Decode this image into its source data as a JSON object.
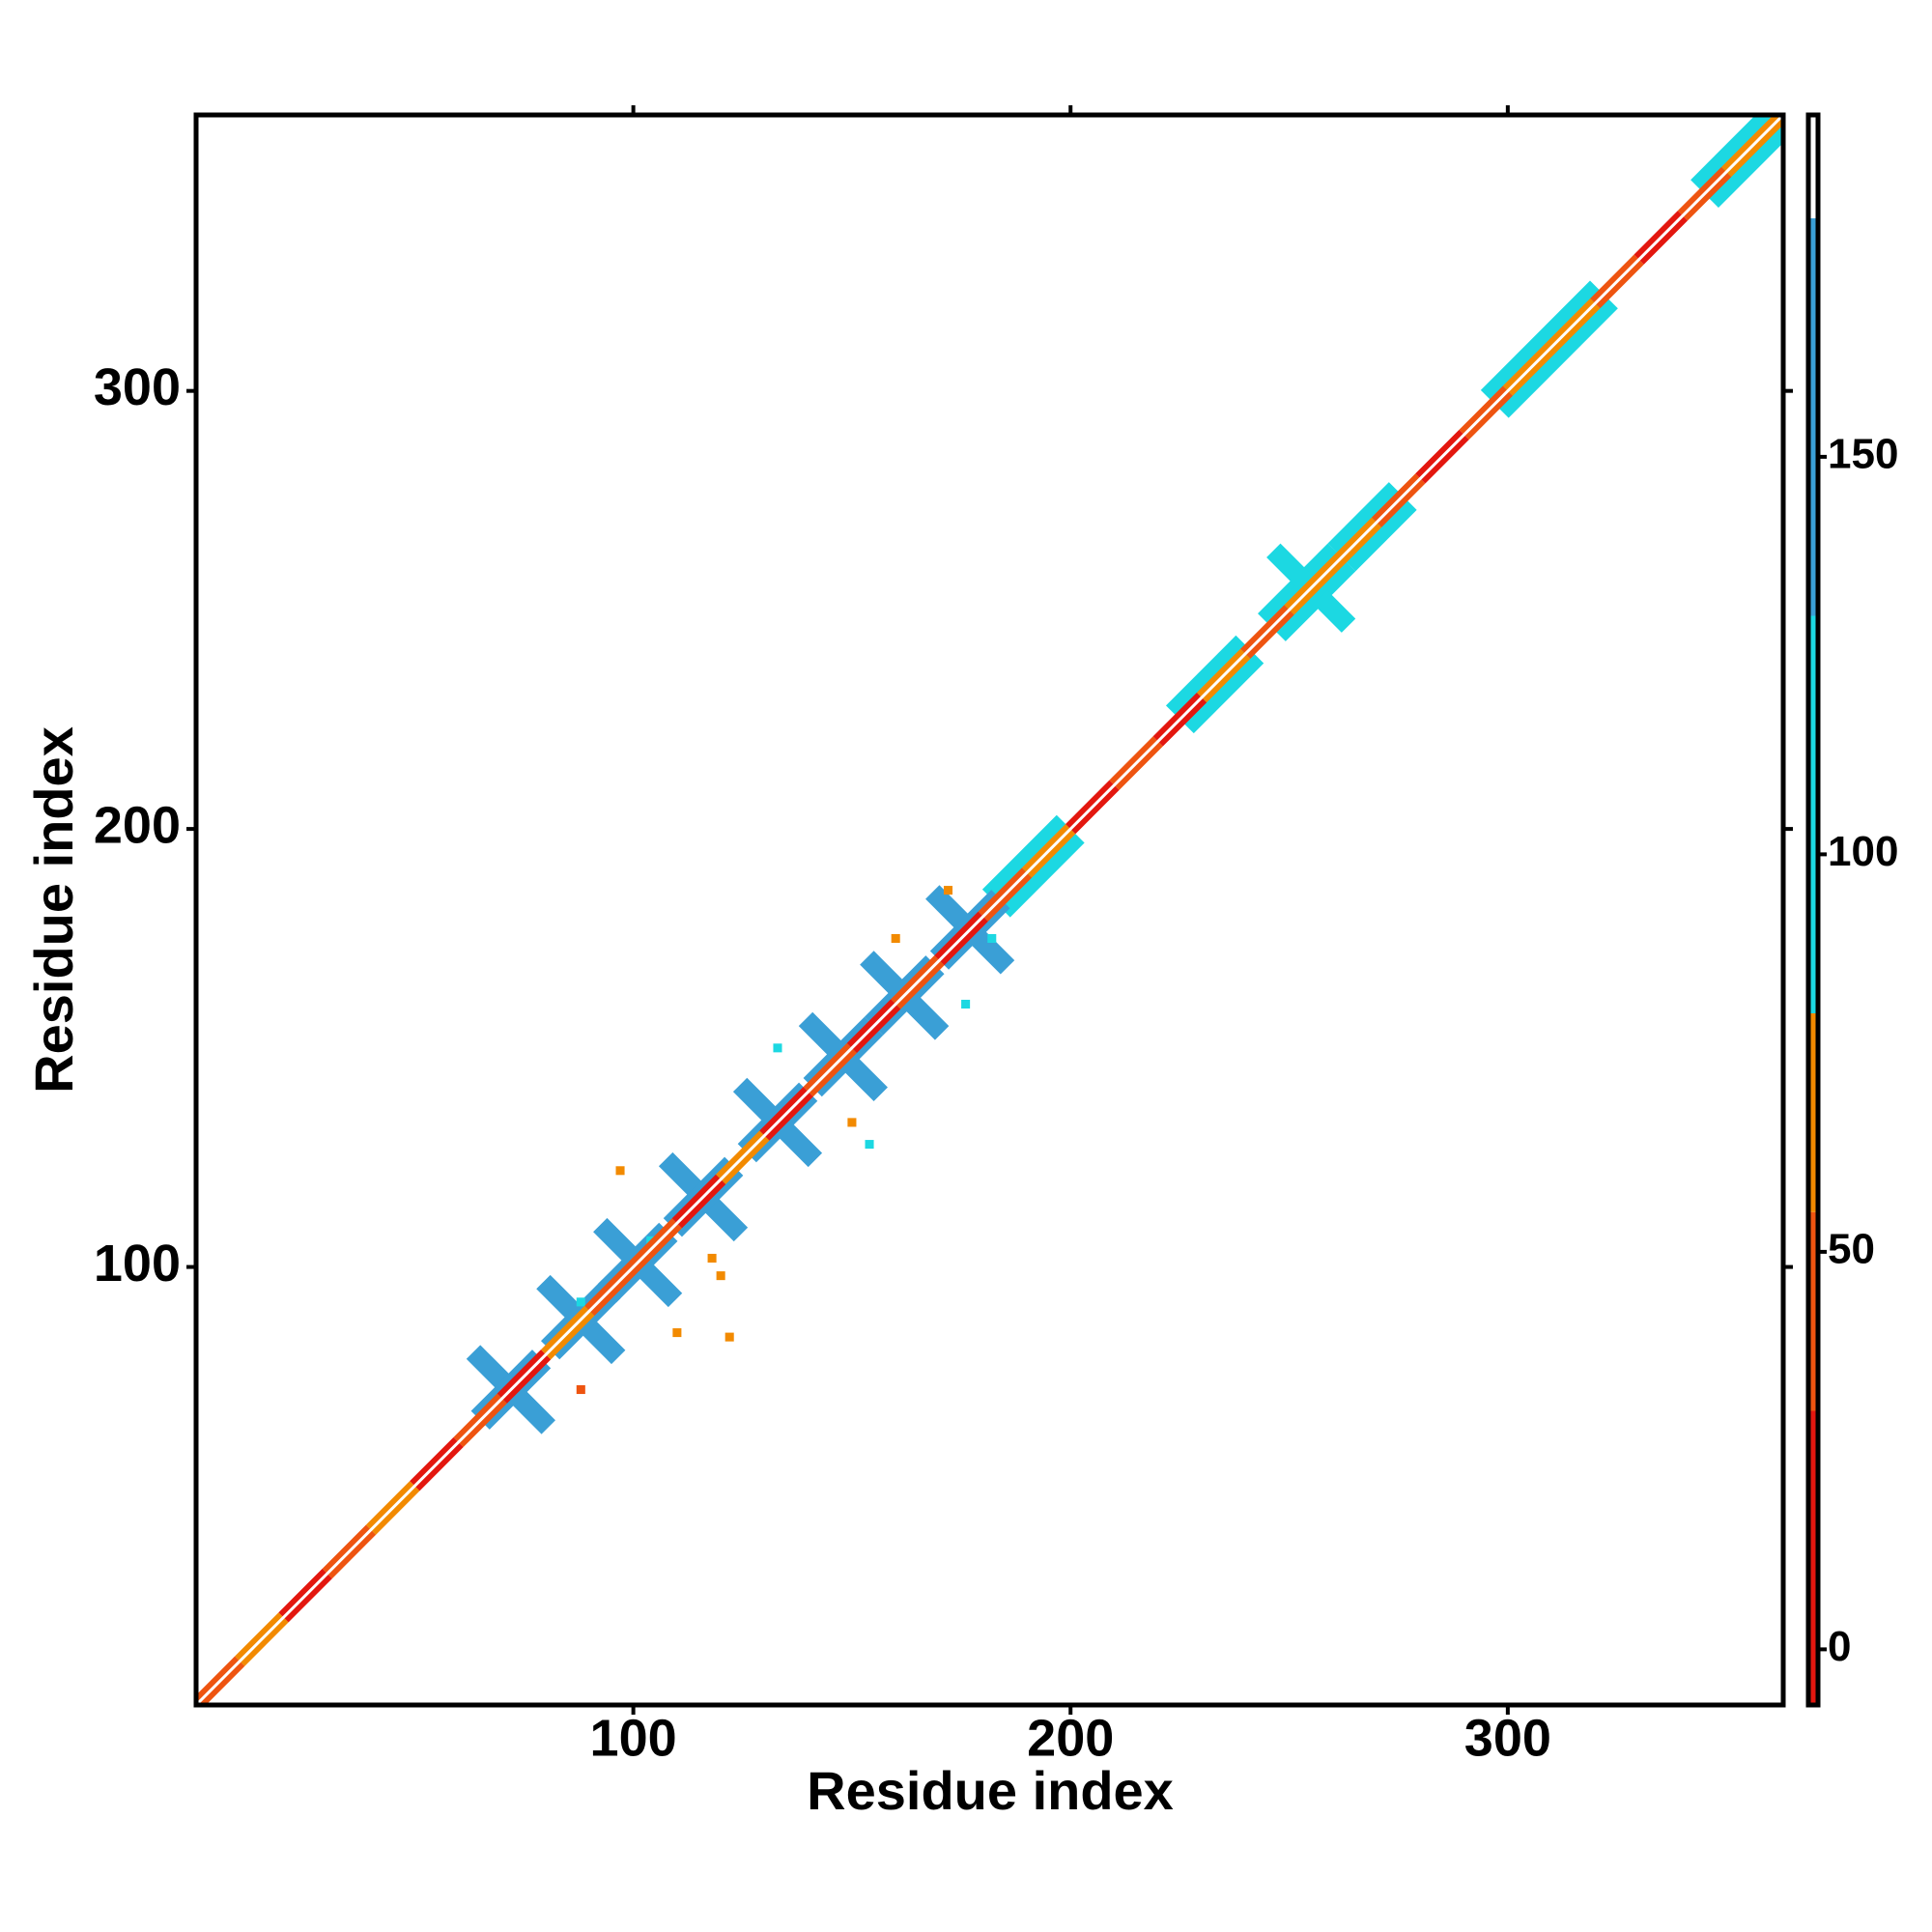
{
  "chart_data": {
    "type": "heatmap",
    "xlabel": "Residue index",
    "ylabel": "Residue index",
    "xlim": [
      0,
      363
    ],
    "ylim": [
      0,
      363
    ],
    "xticks": [
      100,
      200,
      300
    ],
    "yticks": [
      100,
      200,
      300
    ],
    "colorbar": {
      "lim": [
        -7,
        193
      ],
      "ticks": [
        0,
        50,
        100,
        150
      ],
      "bands": [
        {
          "range": [
            -7,
            30
          ],
          "color": "#e3170f"
        },
        {
          "range": [
            30,
            55
          ],
          "color": "#ee5410"
        },
        {
          "range": [
            55,
            80
          ],
          "color": "#f28a00"
        },
        {
          "range": [
            80,
            130
          ],
          "color": "#1cd8e2"
        },
        {
          "range": [
            130,
            180
          ],
          "color": "#3a9fd6"
        },
        {
          "range": [
            180,
            193
          ],
          "color": "#ffffff"
        }
      ]
    },
    "helix_bands": {
      "x": [
        [
          183,
          200
        ],
        [
          225,
          241
        ],
        [
          246,
          262
        ],
        [
          262,
          276
        ],
        [
          297,
          322
        ],
        [
          345,
          362
        ]
      ],
      "values": [
        95,
        95,
        95,
        95,
        95,
        95
      ]
    },
    "diagonal": {
      "x": [
        0,
        10,
        20,
        30,
        40,
        50,
        60,
        70,
        80,
        90,
        100,
        110,
        120,
        130,
        140,
        150,
        160,
        170,
        180,
        190,
        200,
        210,
        220,
        230,
        240,
        250,
        260,
        270,
        280,
        290,
        300,
        310,
        320,
        330,
        340,
        350
      ],
      "values": [
        40,
        60,
        25,
        45,
        60,
        20,
        45,
        10,
        60,
        35,
        50,
        10,
        60,
        20,
        45,
        30,
        55,
        15,
        45,
        65,
        20,
        40,
        10,
        60,
        45,
        65,
        60,
        45,
        20,
        40,
        65,
        60,
        35,
        20,
        45,
        60
      ]
    },
    "crosses": {
      "x": [
        72,
        88,
        101,
        116,
        133,
        148,
        162,
        177,
        255
      ],
      "values": [
        140,
        140,
        140,
        140,
        140,
        140,
        140,
        140,
        100
      ]
    },
    "points": {
      "x": [
        97,
        120,
        88,
        104,
        122,
        118,
        133,
        154,
        150,
        160,
        176,
        182,
        172,
        110,
        88
      ],
      "y": [
        122,
        98,
        72,
        106,
        84,
        102,
        150,
        128,
        133,
        175,
        160,
        175,
        186,
        85,
        92
      ],
      "values": [
        60,
        60,
        40,
        100,
        60,
        60,
        100,
        100,
        60,
        60,
        100,
        100,
        60,
        60,
        100
      ]
    }
  }
}
